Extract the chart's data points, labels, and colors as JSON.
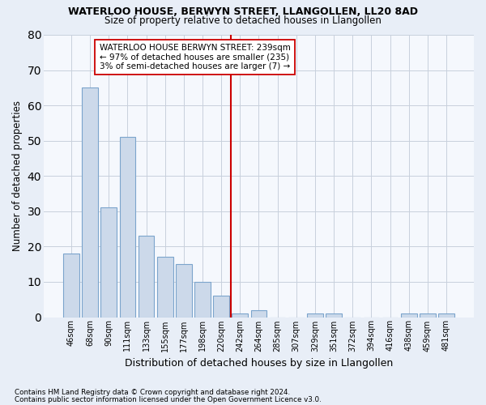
{
  "title": "WATERLOO HOUSE, BERWYN STREET, LLANGOLLEN, LL20 8AD",
  "subtitle": "Size of property relative to detached houses in Llangollen",
  "xlabel": "Distribution of detached houses by size in Llangollen",
  "ylabel": "Number of detached properties",
  "footnote1": "Contains HM Land Registry data © Crown copyright and database right 2024.",
  "footnote2": "Contains public sector information licensed under the Open Government Licence v3.0.",
  "bar_labels": [
    "46sqm",
    "68sqm",
    "90sqm",
    "111sqm",
    "133sqm",
    "155sqm",
    "177sqm",
    "198sqm",
    "220sqm",
    "242sqm",
    "264sqm",
    "285sqm",
    "307sqm",
    "329sqm",
    "351sqm",
    "372sqm",
    "394sqm",
    "416sqm",
    "438sqm",
    "459sqm",
    "481sqm"
  ],
  "bar_values": [
    18,
    65,
    31,
    51,
    23,
    17,
    15,
    10,
    6,
    1,
    2,
    0,
    0,
    1,
    1,
    0,
    0,
    0,
    1,
    1,
    1
  ],
  "bar_color": "#ccd9ea",
  "bar_edge_color": "#7ba4cc",
  "ylim": [
    0,
    80
  ],
  "yticks": [
    0,
    10,
    20,
    30,
    40,
    50,
    60,
    70,
    80
  ],
  "annotation_title": "WATERLOO HOUSE BERWYN STREET: 239sqm",
  "annotation_line1": "← 97% of detached houses are smaller (235)",
  "annotation_line2": "3% of semi-detached houses are larger (7) →",
  "background_color": "#e8eef7",
  "plot_bg_color": "#f5f8fd",
  "grid_color": "#c8d0dc",
  "red_line_color": "#cc0000",
  "red_line_idx": 9
}
